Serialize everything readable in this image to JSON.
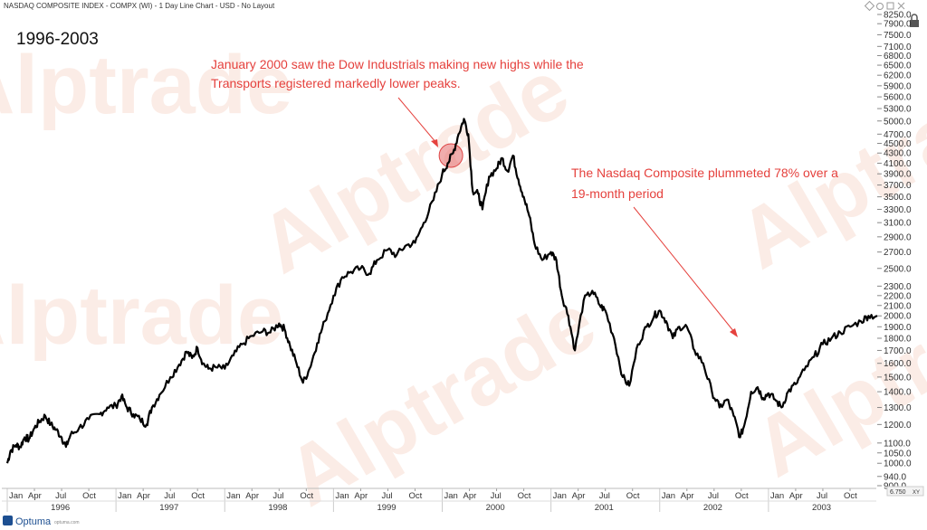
{
  "header": {
    "title": "NASDAQ COMPOSITE INDEX - COMPX (WI) - 1 Day Line Chart - USD - No Layout",
    "period": "1996-2003",
    "corner_value": "6.750",
    "corner_unit": "XY"
  },
  "logo": {
    "name": "Optuma",
    "sub": "optuma.com"
  },
  "watermark": "Alptrade",
  "colors": {
    "line": "#000000",
    "annotation": "#e5413d",
    "highlight": "#e36a6a",
    "watermark": "#f4c9b8"
  },
  "chart_data": {
    "type": "line",
    "yscale": "log",
    "ylim": [
      900,
      8250
    ],
    "y_ticks": [
      "8250.0",
      "7900.0",
      "7500.0",
      "7100.0",
      "6800.0",
      "6500.0",
      "6200.0",
      "5900.0",
      "5600.0",
      "5300.0",
      "5000.0",
      "4700.0",
      "4500.0",
      "4300.0",
      "4100.0",
      "3900.0",
      "3700.0",
      "3500.0",
      "3300.0",
      "3100.0",
      "2900.0",
      "2700.0",
      "2500.0",
      "2300.0",
      "2200.0",
      "2100.0",
      "2000.0",
      "1900.0",
      "1800.0",
      "1700.0",
      "1600.0",
      "1500.0",
      "1400.0",
      "1300.0",
      "1200.0",
      "1100.0",
      "1050.0",
      "1000.0",
      "940.0",
      "900.0"
    ],
    "x_month_ticks": [
      {
        "label": "Jan",
        "t": 1996.0
      },
      {
        "label": "Apr",
        "t": 1996.25
      },
      {
        "label": "Jul",
        "t": 1996.5
      },
      {
        "label": "Oct",
        "t": 1996.75
      },
      {
        "label": "Jan",
        "t": 1997.0
      },
      {
        "label": "Apr",
        "t": 1997.25
      },
      {
        "label": "Jul",
        "t": 1997.5
      },
      {
        "label": "Oct",
        "t": 1997.75
      },
      {
        "label": "Jan",
        "t": 1998.0
      },
      {
        "label": "Apr",
        "t": 1998.25
      },
      {
        "label": "Jul",
        "t": 1998.5
      },
      {
        "label": "Oct",
        "t": 1998.75
      },
      {
        "label": "Jan",
        "t": 1999.0
      },
      {
        "label": "Apr",
        "t": 1999.25
      },
      {
        "label": "Jul",
        "t": 1999.5
      },
      {
        "label": "Oct",
        "t": 1999.75
      },
      {
        "label": "Jan",
        "t": 2000.0
      },
      {
        "label": "Apr",
        "t": 2000.25
      },
      {
        "label": "Jul",
        "t": 2000.5
      },
      {
        "label": "Oct",
        "t": 2000.75
      },
      {
        "label": "Jan",
        "t": 2001.0
      },
      {
        "label": "Apr",
        "t": 2001.25
      },
      {
        "label": "Jul",
        "t": 2001.5
      },
      {
        "label": "Oct",
        "t": 2001.75
      },
      {
        "label": "Jan",
        "t": 2002.0
      },
      {
        "label": "Apr",
        "t": 2002.25
      },
      {
        "label": "Jul",
        "t": 2002.5
      },
      {
        "label": "Oct",
        "t": 2002.75
      },
      {
        "label": "Jan",
        "t": 2003.0
      },
      {
        "label": "Apr",
        "t": 2003.25
      },
      {
        "label": "Jul",
        "t": 2003.5
      },
      {
        "label": "Oct",
        "t": 2003.75
      }
    ],
    "x_year_labels": [
      {
        "label": "1996",
        "t": 1996.5
      },
      {
        "label": "1997",
        "t": 1997.5
      },
      {
        "label": "1998",
        "t": 1998.5
      },
      {
        "label": "1999",
        "t": 1999.5
      },
      {
        "label": "2000",
        "t": 2000.5
      },
      {
        "label": "2001",
        "t": 2001.5
      },
      {
        "label": "2002",
        "t": 2002.5
      },
      {
        "label": "2003",
        "t": 2003.5
      }
    ],
    "series": [
      {
        "points": [
          [
            1996.0,
            1000
          ],
          [
            1996.03,
            1060
          ],
          [
            1996.08,
            1090
          ],
          [
            1996.12,
            1080
          ],
          [
            1996.16,
            1130
          ],
          [
            1996.2,
            1120
          ],
          [
            1996.25,
            1180
          ],
          [
            1996.3,
            1220
          ],
          [
            1996.35,
            1250
          ],
          [
            1996.4,
            1200
          ],
          [
            1996.45,
            1170
          ],
          [
            1996.5,
            1130
          ],
          [
            1996.54,
            1080
          ],
          [
            1996.58,
            1140
          ],
          [
            1996.66,
            1180
          ],
          [
            1996.75,
            1230
          ],
          [
            1996.85,
            1260
          ],
          [
            1996.92,
            1300
          ],
          [
            1997.0,
            1310
          ],
          [
            1997.05,
            1370
          ],
          [
            1997.1,
            1300
          ],
          [
            1997.16,
            1260
          ],
          [
            1997.22,
            1230
          ],
          [
            1997.28,
            1200
          ],
          [
            1997.33,
            1300
          ],
          [
            1997.4,
            1380
          ],
          [
            1997.5,
            1500
          ],
          [
            1997.58,
            1590
          ],
          [
            1997.65,
            1690
          ],
          [
            1997.7,
            1640
          ],
          [
            1997.75,
            1720
          ],
          [
            1997.8,
            1600
          ],
          [
            1997.85,
            1560
          ],
          [
            1997.92,
            1570
          ],
          [
            1998.0,
            1560
          ],
          [
            1998.08,
            1660
          ],
          [
            1998.16,
            1750
          ],
          [
            1998.25,
            1820
          ],
          [
            1998.35,
            1860
          ],
          [
            1998.42,
            1850
          ],
          [
            1998.5,
            1930
          ],
          [
            1998.55,
            1880
          ],
          [
            1998.6,
            1740
          ],
          [
            1998.66,
            1600
          ],
          [
            1998.72,
            1460
          ],
          [
            1998.78,
            1560
          ],
          [
            1998.85,
            1760
          ],
          [
            1998.92,
            1950
          ],
          [
            1999.0,
            2200
          ],
          [
            1999.08,
            2400
          ],
          [
            1999.16,
            2460
          ],
          [
            1999.25,
            2500
          ],
          [
            1999.33,
            2440
          ],
          [
            1999.4,
            2600
          ],
          [
            1999.5,
            2730
          ],
          [
            1999.58,
            2660
          ],
          [
            1999.66,
            2780
          ],
          [
            1999.75,
            2820
          ],
          [
            1999.83,
            3100
          ],
          [
            1999.92,
            3450
          ],
          [
            2000.0,
            3900
          ],
          [
            2000.05,
            4100
          ],
          [
            2000.1,
            4300
          ],
          [
            2000.15,
            4700
          ],
          [
            2000.2,
            5050
          ],
          [
            2000.24,
            4700
          ],
          [
            2000.28,
            3600
          ],
          [
            2000.33,
            3550
          ],
          [
            2000.37,
            3300
          ],
          [
            2000.43,
            3850
          ],
          [
            2000.5,
            4000
          ],
          [
            2000.55,
            4200
          ],
          [
            2000.6,
            3950
          ],
          [
            2000.65,
            4250
          ],
          [
            2000.7,
            3800
          ],
          [
            2000.75,
            3500
          ],
          [
            2000.8,
            3200
          ],
          [
            2000.85,
            2800
          ],
          [
            2000.92,
            2600
          ],
          [
            2001.0,
            2700
          ],
          [
            2001.05,
            2600
          ],
          [
            2001.1,
            2200
          ],
          [
            2001.16,
            2000
          ],
          [
            2001.22,
            1700
          ],
          [
            2001.3,
            2150
          ],
          [
            2001.38,
            2250
          ],
          [
            2001.45,
            2100
          ],
          [
            2001.5,
            2050
          ],
          [
            2001.58,
            1800
          ],
          [
            2001.66,
            1500
          ],
          [
            2001.72,
            1440
          ],
          [
            2001.8,
            1750
          ],
          [
            2001.88,
            1900
          ],
          [
            2001.95,
            2000
          ],
          [
            2002.0,
            2050
          ],
          [
            2002.06,
            1950
          ],
          [
            2002.12,
            1800
          ],
          [
            2002.18,
            1900
          ],
          [
            2002.25,
            1900
          ],
          [
            2002.32,
            1700
          ],
          [
            2002.4,
            1600
          ],
          [
            2002.48,
            1400
          ],
          [
            2002.55,
            1300
          ],
          [
            2002.62,
            1350
          ],
          [
            2002.68,
            1250
          ],
          [
            2002.74,
            1130
          ],
          [
            2002.78,
            1200
          ],
          [
            2002.84,
            1400
          ],
          [
            2002.9,
            1430
          ],
          [
            2002.95,
            1360
          ],
          [
            2003.0,
            1390
          ],
          [
            2003.06,
            1350
          ],
          [
            2003.12,
            1300
          ],
          [
            2003.18,
            1400
          ],
          [
            2003.25,
            1450
          ],
          [
            2003.33,
            1550
          ],
          [
            2003.42,
            1650
          ],
          [
            2003.5,
            1750
          ],
          [
            2003.58,
            1800
          ],
          [
            2003.66,
            1850
          ],
          [
            2003.75,
            1900
          ],
          [
            2003.85,
            1950
          ],
          [
            2003.92,
            2000
          ],
          [
            2004.0,
            2000
          ]
        ]
      }
    ],
    "annotations": [
      {
        "lines": [
          "January 2000 saw the Dow Industrials making new highs while the",
          "Transports registered markedly lower peaks."
        ]
      },
      {
        "lines": [
          "The Nasdaq Composite plummeted 78% over a",
          "19-month period"
        ]
      }
    ],
    "highlight": {
      "t": 2000.08,
      "value": 4250
    },
    "grid": false,
    "legend": "none"
  }
}
